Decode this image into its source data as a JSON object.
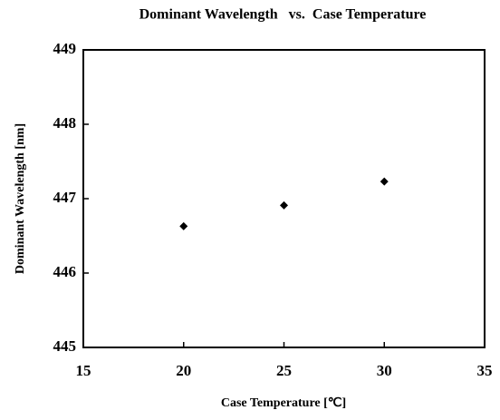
{
  "chart_data": {
    "type": "scatter",
    "title": "Dominant Wavelength   vs.  Case Temperature",
    "x_label": "Case Temperature [℃]",
    "y_label": "Dominant Wavelength [nm]",
    "series": [
      {
        "name": "Dominant Wavelength",
        "color": "#000000",
        "x": [
          20,
          25,
          30
        ],
        "values": [
          446.63,
          446.91,
          447.23
        ]
      }
    ],
    "xlim": [
      15,
      35
    ],
    "xticks": [
      15,
      20,
      25,
      30,
      35
    ],
    "ylim": [
      445,
      449
    ],
    "yticks": [
      445,
      446,
      447,
      448,
      449
    ]
  }
}
